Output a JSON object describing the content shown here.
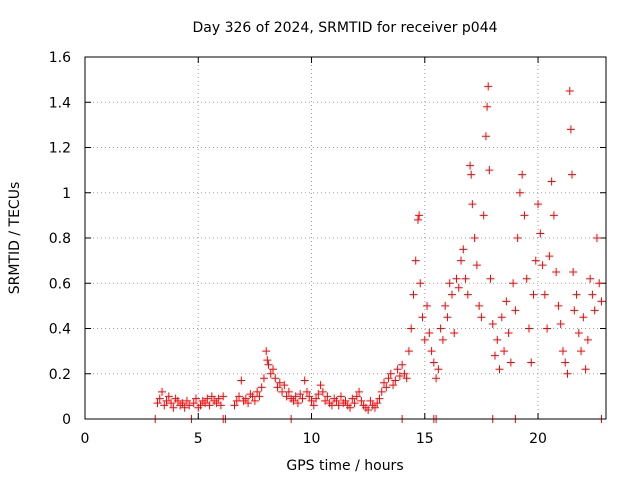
{
  "chart_data": {
    "type": "scatter",
    "title": "Day 326 of 2024, SRMTID for receiver p044",
    "xlabel": "GPS time / hours",
    "ylabel": "SRMTID / TECUs",
    "xlim": [
      0,
      23
    ],
    "ylim": [
      0,
      1.6
    ],
    "xticks": [
      0,
      5,
      10,
      15,
      20
    ],
    "xtick_labels": [
      "0",
      "5",
      "10",
      "15",
      "20"
    ],
    "yticks": [
      0,
      0.2,
      0.4,
      0.6,
      0.8,
      1,
      1.2,
      1.4,
      1.6
    ],
    "ytick_labels": [
      "0",
      "0.2",
      "0.4",
      "0.6",
      "0.8",
      "1",
      "1.2",
      "1.4",
      "1.6"
    ],
    "grid": true,
    "marker": "plus",
    "color": "#ff0000",
    "series": [
      {
        "name": "SRMTID",
        "points": [
          [
            3.2,
            0.07
          ],
          [
            3.3,
            0.09
          ],
          [
            3.4,
            0.12
          ],
          [
            3.5,
            0.06
          ],
          [
            3.6,
            0.08
          ],
          [
            3.7,
            0.1
          ],
          [
            3.8,
            0.07
          ],
          [
            3.9,
            0.05
          ],
          [
            4.0,
            0.09
          ],
          [
            4.1,
            0.08
          ],
          [
            4.2,
            0.06
          ],
          [
            4.3,
            0.07
          ],
          [
            4.4,
            0.05
          ],
          [
            4.5,
            0.08
          ],
          [
            4.6,
            0.06
          ],
          [
            4.8,
            0.07
          ],
          [
            4.9,
            0.09
          ],
          [
            5.0,
            0.05
          ],
          [
            5.1,
            0.06
          ],
          [
            5.2,
            0.08
          ],
          [
            5.3,
            0.07
          ],
          [
            5.4,
            0.09
          ],
          [
            5.5,
            0.06
          ],
          [
            5.6,
            0.1
          ],
          [
            5.7,
            0.08
          ],
          [
            5.8,
            0.07
          ],
          [
            5.9,
            0.09
          ],
          [
            6.0,
            0.06
          ],
          [
            6.1,
            0.1
          ],
          [
            6.6,
            0.06
          ],
          [
            6.7,
            0.08
          ],
          [
            6.8,
            0.1
          ],
          [
            6.9,
            0.17
          ],
          [
            7.0,
            0.08
          ],
          [
            7.1,
            0.09
          ],
          [
            7.2,
            0.07
          ],
          [
            7.3,
            0.11
          ],
          [
            7.4,
            0.1
          ],
          [
            7.5,
            0.08
          ],
          [
            7.6,
            0.12
          ],
          [
            7.7,
            0.1
          ],
          [
            7.8,
            0.14
          ],
          [
            7.9,
            0.18
          ],
          [
            8.0,
            0.3
          ],
          [
            8.05,
            0.26
          ],
          [
            8.1,
            0.24
          ],
          [
            8.2,
            0.2
          ],
          [
            8.3,
            0.22
          ],
          [
            8.4,
            0.18
          ],
          [
            8.5,
            0.14
          ],
          [
            8.6,
            0.16
          ],
          [
            8.7,
            0.12
          ],
          [
            8.8,
            0.15
          ],
          [
            8.9,
            0.1
          ],
          [
            9.0,
            0.12
          ],
          [
            9.1,
            0.09
          ],
          [
            9.2,
            0.08
          ],
          [
            9.3,
            0.1
          ],
          [
            9.4,
            0.07
          ],
          [
            9.5,
            0.11
          ],
          [
            9.6,
            0.09
          ],
          [
            9.7,
            0.17
          ],
          [
            9.8,
            0.12
          ],
          [
            9.9,
            0.1
          ],
          [
            10.0,
            0.08
          ],
          [
            10.1,
            0.06
          ],
          [
            10.2,
            0.09
          ],
          [
            10.3,
            0.11
          ],
          [
            10.4,
            0.15
          ],
          [
            10.5,
            0.12
          ],
          [
            10.6,
            0.08
          ],
          [
            10.7,
            0.1
          ],
          [
            10.8,
            0.07
          ],
          [
            10.9,
            0.06
          ],
          [
            11.0,
            0.09
          ],
          [
            11.1,
            0.08
          ],
          [
            11.2,
            0.06
          ],
          [
            11.3,
            0.1
          ],
          [
            11.4,
            0.07
          ],
          [
            11.5,
            0.08
          ],
          [
            11.6,
            0.06
          ],
          [
            11.7,
            0.05
          ],
          [
            11.8,
            0.09
          ],
          [
            11.9,
            0.07
          ],
          [
            12.0,
            0.1
          ],
          [
            12.1,
            0.12
          ],
          [
            12.2,
            0.08
          ],
          [
            12.3,
            0.06
          ],
          [
            12.4,
            0.05
          ],
          [
            12.5,
            0.04
          ],
          [
            12.6,
            0.08
          ],
          [
            12.7,
            0.06
          ],
          [
            12.8,
            0.05
          ],
          [
            12.9,
            0.07
          ],
          [
            13.0,
            0.09
          ],
          [
            13.1,
            0.12
          ],
          [
            13.2,
            0.16
          ],
          [
            13.3,
            0.14
          ],
          [
            13.4,
            0.18
          ],
          [
            13.5,
            0.2
          ],
          [
            13.6,
            0.15
          ],
          [
            13.7,
            0.17
          ],
          [
            13.8,
            0.22
          ],
          [
            13.9,
            0.19
          ],
          [
            14.0,
            0.24
          ],
          [
            14.1,
            0.2
          ],
          [
            14.2,
            0.18
          ],
          [
            14.3,
            0.3
          ],
          [
            14.4,
            0.4
          ],
          [
            14.5,
            0.55
          ],
          [
            14.6,
            0.7
          ],
          [
            14.7,
            0.88
          ],
          [
            14.75,
            0.9
          ],
          [
            14.8,
            0.6
          ],
          [
            14.9,
            0.45
          ],
          [
            15.0,
            0.35
          ],
          [
            15.1,
            0.5
          ],
          [
            15.2,
            0.38
          ],
          [
            15.3,
            0.3
          ],
          [
            15.4,
            0.25
          ],
          [
            15.5,
            0.18
          ],
          [
            15.6,
            0.22
          ],
          [
            15.7,
            0.4
          ],
          [
            15.8,
            0.35
          ],
          [
            15.9,
            0.5
          ],
          [
            16.0,
            0.45
          ],
          [
            16.1,
            0.6
          ],
          [
            16.2,
            0.55
          ],
          [
            16.3,
            0.38
          ],
          [
            16.4,
            0.62
          ],
          [
            16.5,
            0.58
          ],
          [
            16.6,
            0.7
          ],
          [
            16.7,
            0.75
          ],
          [
            16.8,
            0.62
          ],
          [
            16.9,
            0.55
          ],
          [
            17.0,
            1.12
          ],
          [
            17.05,
            1.08
          ],
          [
            17.1,
            0.95
          ],
          [
            17.2,
            0.8
          ],
          [
            17.3,
            0.68
          ],
          [
            17.4,
            0.5
          ],
          [
            17.5,
            0.45
          ],
          [
            17.6,
            0.9
          ],
          [
            17.7,
            1.25
          ],
          [
            17.75,
            1.38
          ],
          [
            17.8,
            1.47
          ],
          [
            17.85,
            1.1
          ],
          [
            17.9,
            0.62
          ],
          [
            18.0,
            0.42
          ],
          [
            18.1,
            0.28
          ],
          [
            18.2,
            0.35
          ],
          [
            18.3,
            0.22
          ],
          [
            18.4,
            0.45
          ],
          [
            18.5,
            0.3
          ],
          [
            18.6,
            0.52
          ],
          [
            18.7,
            0.38
          ],
          [
            18.8,
            0.25
          ],
          [
            18.9,
            0.6
          ],
          [
            19.0,
            0.48
          ],
          [
            19.1,
            0.8
          ],
          [
            19.2,
            1.0
          ],
          [
            19.3,
            1.08
          ],
          [
            19.4,
            0.9
          ],
          [
            19.5,
            0.62
          ],
          [
            19.6,
            0.4
          ],
          [
            19.7,
            0.25
          ],
          [
            19.8,
            0.55
          ],
          [
            19.9,
            0.7
          ],
          [
            20.0,
            0.95
          ],
          [
            20.1,
            0.82
          ],
          [
            20.2,
            0.68
          ],
          [
            20.3,
            0.55
          ],
          [
            20.4,
            0.4
          ],
          [
            20.5,
            0.72
          ],
          [
            20.6,
            1.05
          ],
          [
            20.7,
            0.9
          ],
          [
            20.8,
            0.65
          ],
          [
            20.9,
            0.5
          ],
          [
            21.0,
            0.42
          ],
          [
            21.1,
            0.3
          ],
          [
            21.2,
            0.25
          ],
          [
            21.3,
            0.2
          ],
          [
            21.4,
            1.45
          ],
          [
            21.45,
            1.28
          ],
          [
            21.5,
            1.08
          ],
          [
            21.55,
            0.65
          ],
          [
            21.6,
            0.48
          ],
          [
            21.7,
            0.55
          ],
          [
            21.8,
            0.38
          ],
          [
            21.9,
            0.3
          ],
          [
            22.0,
            0.45
          ],
          [
            22.1,
            0.22
          ],
          [
            22.2,
            0.35
          ],
          [
            22.3,
            0.62
          ],
          [
            22.4,
            0.55
          ],
          [
            22.5,
            0.48
          ],
          [
            22.6,
            0.8
          ],
          [
            22.7,
            0.6
          ],
          [
            22.8,
            0.52
          ]
        ]
      }
    ],
    "baseline_points": [
      3.1,
      4.7,
      6.1,
      6.2,
      9.1,
      14.0,
      15.4,
      15.5,
      18.0,
      19.0,
      22.8
    ]
  }
}
